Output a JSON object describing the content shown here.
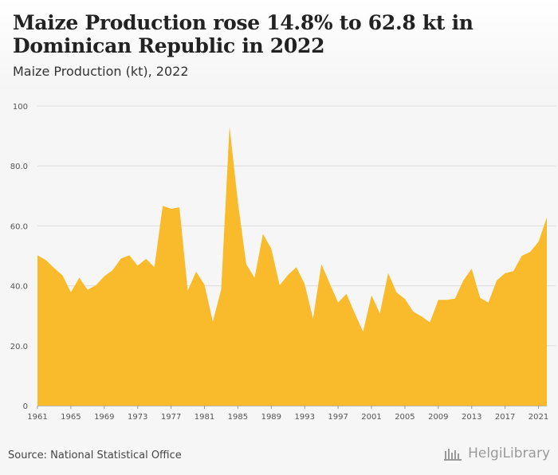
{
  "title": "Maize Production rose 14.8% to 62.8 kt in Dominican Republic in 2022",
  "subtitle": "Maize Production (kt), 2022",
  "source": "Source: National Statistical Office",
  "brand": "HelgiLibrary",
  "colors": {
    "area": "#f9bb2b",
    "grid": "#dddddd",
    "axis_text": "#555555",
    "background": "#f6f6f6"
  },
  "chart_data": {
    "type": "area",
    "title": "Maize Production rose 14.8% to 62.8 kt in Dominican Republic in 2022",
    "subtitle": "Maize Production (kt), 2022",
    "xlabel": "",
    "ylabel": "",
    "xlim": [
      1961,
      2022
    ],
    "ylim": [
      0,
      100
    ],
    "yticks": [
      0,
      20,
      40,
      60,
      80,
      100
    ],
    "ytick_labels": [
      "0",
      "20.0",
      "40.0",
      "60.0",
      "80.0",
      "100"
    ],
    "xticks": [
      1961,
      1965,
      1969,
      1973,
      1977,
      1981,
      1985,
      1989,
      1993,
      1997,
      2001,
      2005,
      2009,
      2013,
      2017,
      2021
    ],
    "grid": true,
    "legend": "none",
    "series": [
      {
        "x": [
          1961,
          1962,
          1963,
          1964,
          1965,
          1966,
          1967,
          1968,
          1969,
          1970,
          1971,
          1972,
          1973,
          1974,
          1975,
          1976,
          1977,
          1978,
          1979,
          1980,
          1981,
          1982,
          1983,
          1984,
          1985,
          1986,
          1987,
          1988,
          1989,
          1990,
          1991,
          1992,
          1993,
          1994,
          1995,
          1996,
          1997,
          1998,
          1999,
          2000,
          2001,
          2002,
          2003,
          2004,
          2005,
          2006,
          2007,
          2008,
          2009,
          2010,
          2011,
          2012,
          2013,
          2014,
          2015,
          2016,
          2017,
          2018,
          2019,
          2020,
          2021,
          2022
        ],
        "values": [
          50.2,
          48.6,
          45.9,
          43.5,
          37.8,
          42.7,
          38.7,
          40.2,
          43.2,
          45.2,
          49.1,
          50.2,
          46.7,
          49.0,
          46.2,
          66.7,
          65.7,
          66.2,
          38.4,
          44.7,
          40.4,
          28.0,
          38.8,
          93.2,
          68.0,
          47.2,
          42.7,
          57.3,
          52.4,
          40.2,
          43.6,
          46.2,
          40.6,
          29.0,
          47.2,
          40.8,
          34.4,
          37.3,
          30.8,
          24.7,
          36.8,
          30.8,
          44.2,
          37.8,
          35.6,
          31.4,
          29.8,
          27.8,
          35.3,
          35.3,
          35.7,
          41.8,
          45.7,
          36.0,
          34.4,
          41.8,
          44.2,
          44.9,
          50.0,
          51.3,
          54.7,
          62.8
        ]
      }
    ]
  }
}
